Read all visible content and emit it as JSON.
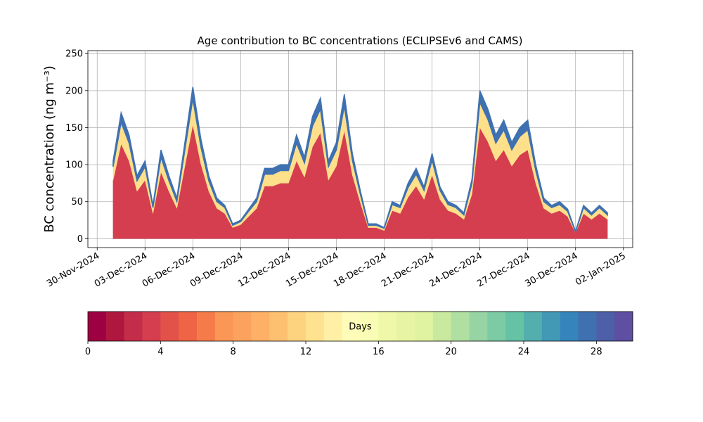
{
  "chart_data": {
    "type": "stacked_area",
    "title": "Age contribution to BC concentrations (ECLIPSEv6 and CAMS)",
    "ylabel": "BC concentration (ng m⁻³)",
    "x": [
      "2024-12-01 00:00",
      "2024-12-01 12:00",
      "2024-12-02 00:00",
      "2024-12-02 12:00",
      "2024-12-03 00:00",
      "2024-12-03 12:00",
      "2024-12-04 00:00",
      "2024-12-04 12:00",
      "2024-12-05 00:00",
      "2024-12-05 12:00",
      "2024-12-06 00:00",
      "2024-12-06 12:00",
      "2024-12-07 00:00",
      "2024-12-07 12:00",
      "2024-12-08 00:00",
      "2024-12-08 12:00",
      "2024-12-09 00:00",
      "2024-12-09 12:00",
      "2024-12-10 00:00",
      "2024-12-10 12:00",
      "2024-12-11 00:00",
      "2024-12-11 12:00",
      "2024-12-12 00:00",
      "2024-12-12 12:00",
      "2024-12-13 00:00",
      "2024-12-13 12:00",
      "2024-12-14 00:00",
      "2024-12-14 12:00",
      "2024-12-15 00:00",
      "2024-12-15 12:00",
      "2024-12-16 00:00",
      "2024-12-16 12:00",
      "2024-12-17 00:00",
      "2024-12-17 12:00",
      "2024-12-18 00:00",
      "2024-12-18 12:00",
      "2024-12-19 00:00",
      "2024-12-19 12:00",
      "2024-12-20 00:00",
      "2024-12-20 12:00",
      "2024-12-21 00:00",
      "2024-12-21 12:00",
      "2024-12-22 00:00",
      "2024-12-22 12:00",
      "2024-12-23 00:00",
      "2024-12-23 12:00",
      "2024-12-24 00:00",
      "2024-12-24 12:00",
      "2024-12-25 00:00",
      "2024-12-25 12:00",
      "2024-12-26 00:00",
      "2024-12-26 12:00",
      "2024-12-27 00:00",
      "2024-12-27 12:00",
      "2024-12-28 00:00",
      "2024-12-28 12:00",
      "2024-12-29 00:00",
      "2024-12-29 12:00",
      "2024-12-30 00:00",
      "2024-12-30 12:00",
      "2024-12-31 00:00",
      "2024-12-31 12:00",
      "2025-01-01 00:00"
    ],
    "series": [
      {
        "color": "#d53e4f",
        "values": [
          79,
          128,
          105,
          64,
          79,
          34,
          90,
          64,
          41,
          98,
          154,
          101,
          64,
          41,
          34,
          15,
          19,
          30,
          41,
          71,
          71,
          75,
          75,
          105,
          83,
          124,
          143,
          79,
          98,
          146,
          86,
          49,
          15,
          15,
          11,
          38,
          34,
          56,
          71,
          53,
          86,
          53,
          38,
          34,
          26,
          60,
          150,
          131,
          105,
          120,
          98,
          113,
          120,
          75,
          41,
          34,
          38,
          30,
          8,
          34,
          26,
          34,
          26
        ]
      },
      {
        "color": "#fee08b",
        "values": [
          18,
          29,
          24,
          14,
          18,
          8,
          20,
          14,
          9,
          22,
          35,
          23,
          14,
          9,
          8,
          3,
          4,
          7,
          9,
          16,
          16,
          17,
          17,
          24,
          19,
          28,
          32,
          18,
          22,
          33,
          20,
          11,
          3,
          3,
          3,
          8,
          8,
          13,
          16,
          12,
          20,
          12,
          8,
          8,
          6,
          14,
          34,
          30,
          24,
          27,
          22,
          25,
          27,
          17,
          9,
          8,
          8,
          7,
          1,
          8,
          6,
          8,
          6
        ]
      },
      {
        "color": "#3f71b1",
        "values": [
          8,
          13,
          11,
          7,
          8,
          3,
          10,
          7,
          5,
          10,
          16,
          11,
          7,
          5,
          3,
          2,
          2,
          3,
          5,
          8,
          8,
          8,
          8,
          11,
          8,
          13,
          15,
          8,
          10,
          16,
          9,
          5,
          2,
          2,
          1,
          4,
          3,
          6,
          8,
          5,
          9,
          5,
          4,
          3,
          3,
          6,
          16,
          14,
          11,
          13,
          10,
          12,
          13,
          8,
          5,
          3,
          4,
          3,
          1,
          3,
          3,
          3,
          3
        ]
      }
    ],
    "xlim": [
      "2024-11-29 10:00",
      "2025-01-02 14:00"
    ],
    "xticks": [
      {
        "value": "2024-11-30 00:00",
        "label": "30-Nov-2024"
      },
      {
        "value": "2024-12-03 00:00",
        "label": "03-Dec-2024"
      },
      {
        "value": "2024-12-06 00:00",
        "label": "06-Dec-2024"
      },
      {
        "value": "2024-12-09 00:00",
        "label": "09-Dec-2024"
      },
      {
        "value": "2024-12-12 00:00",
        "label": "12-Dec-2024"
      },
      {
        "value": "2024-12-15 00:00",
        "label": "15-Dec-2024"
      },
      {
        "value": "2024-12-18 00:00",
        "label": "18-Dec-2024"
      },
      {
        "value": "2024-12-21 00:00",
        "label": "21-Dec-2024"
      },
      {
        "value": "2024-12-24 00:00",
        "label": "24-Dec-2024"
      },
      {
        "value": "2024-12-27 00:00",
        "label": "27-Dec-2024"
      },
      {
        "value": "2024-12-30 00:00",
        "label": "30-Dec-2024"
      },
      {
        "value": "2025-01-02 00:00",
        "label": "02-Jan-2025"
      }
    ],
    "ylim": [
      -12,
      254
    ],
    "yticks": [
      0,
      50,
      100,
      150,
      200,
      250
    ],
    "grid": true,
    "colorbar": {
      "label": "Days",
      "lim": [
        0,
        30
      ],
      "ticks": [
        0,
        4,
        8,
        12,
        16,
        20,
        24,
        28
      ],
      "colors": [
        "#9e0142",
        "#b0173f",
        "#c42d4a",
        "#d53e4f",
        "#e25249",
        "#ee6445",
        "#f67b4a",
        "#fa9656",
        "#fba35e",
        "#fdb066",
        "#fdc070",
        "#fed380",
        "#fee290",
        "#fff0a6",
        "#fffcba",
        "#f8fcb4",
        "#eef8a8",
        "#e7f5a3",
        "#e0f3a0",
        "#c9e99e",
        "#b0dfa2",
        "#96d4a4",
        "#7dcba4",
        "#66c2a5",
        "#53aeae",
        "#4199b6",
        "#3585bc",
        "#3f71b1",
        "#4d5fa8",
        "#5e4fa2"
      ]
    }
  }
}
